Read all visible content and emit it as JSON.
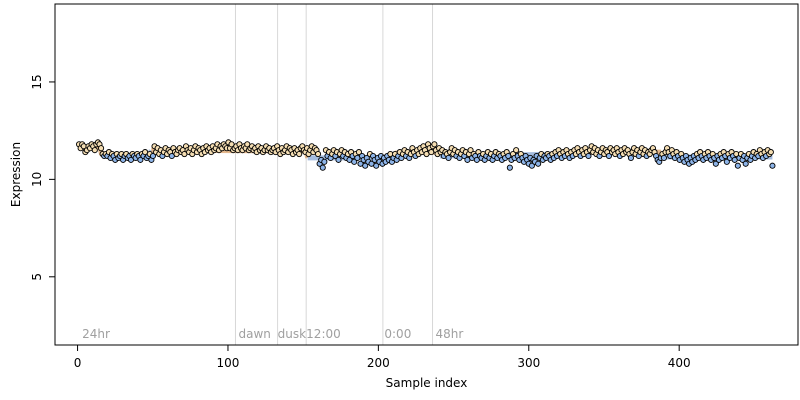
{
  "chart_data": {
    "type": "scatter",
    "title": "",
    "xlabel": "Sample index",
    "ylabel": "Expression",
    "xlim": [
      -15,
      479
    ],
    "ylim": [
      1.5,
      19.0
    ],
    "x_ticks": [
      0,
      100,
      200,
      300,
      400
    ],
    "x_tick_labels": [
      "0",
      "100",
      "200",
      "300",
      "400"
    ],
    "y_ticks": [
      5,
      10,
      15
    ],
    "y_tick_labels": [
      "5",
      "10",
      "15"
    ],
    "grid": false,
    "legend": "none",
    "colors": {
      "point_stroke": "#000000",
      "point_fill_light": "#f5deb3",
      "point_fill_blue": "#8db4e8",
      "trend_above": "#e0b080",
      "trend_below": "#9bb5dc",
      "phase_line": "#d8d8d8",
      "phase_text": "#a0a0a0"
    },
    "phase_lines": [
      105,
      133,
      152,
      203,
      236
    ],
    "phase_labels": [
      {
        "x": 3,
        "text": "24hr"
      },
      {
        "x": 107,
        "text": "dawn"
      },
      {
        "x": 133,
        "text": "dusk"
      },
      {
        "x": 152,
        "text": "12:00"
      },
      {
        "x": 204,
        "text": "0:00"
      },
      {
        "x": 238,
        "text": "48hr"
      }
    ],
    "series": [
      {
        "x_start": 1,
        "x_end": 462,
        "values": [
          11.8,
          11.6,
          11.8,
          11.7,
          11.4,
          11.5,
          11.7,
          11.6,
          11.8,
          11.7,
          11.5,
          11.8,
          11.9,
          11.8,
          11.6,
          11.3,
          11.2,
          11.3,
          11.2,
          11.4,
          11.1,
          11.3,
          11.2,
          11.0,
          11.3,
          11.1,
          11.2,
          11.3,
          11.0,
          11.2,
          11.3,
          11.1,
          11.2,
          11.0,
          11.3,
          11.2,
          11.1,
          11.3,
          11.2,
          11.0,
          11.3,
          11.2,
          11.4,
          11.1,
          11.2,
          11.3,
          11.0,
          11.2,
          11.7,
          11.4,
          11.6,
          11.3,
          11.5,
          11.2,
          11.4,
          11.6,
          11.3,
          11.5,
          11.4,
          11.2,
          11.6,
          11.4,
          11.3,
          11.5,
          11.6,
          11.4,
          11.5,
          11.3,
          11.7,
          11.5,
          11.4,
          11.6,
          11.3,
          11.5,
          11.7,
          11.4,
          11.6,
          11.5,
          11.3,
          11.6,
          11.4,
          11.7,
          11.5,
          11.6,
          11.4,
          11.7,
          11.5,
          11.6,
          11.8,
          11.5,
          11.7,
          11.6,
          11.8,
          11.7,
          11.6,
          11.9,
          11.6,
          11.8,
          11.5,
          11.6,
          11.7,
          11.5,
          11.8,
          11.6,
          11.5,
          11.7,
          11.6,
          11.8,
          11.5,
          11.6,
          11.7,
          11.5,
          11.6,
          11.4,
          11.7,
          11.5,
          11.6,
          11.4,
          11.5,
          11.7,
          11.5,
          11.6,
          11.4,
          11.5,
          11.6,
          11.4,
          11.7,
          11.5,
          11.3,
          11.6,
          11.4,
          11.5,
          11.7,
          11.4,
          11.6,
          11.5,
          11.3,
          11.6,
          11.4,
          11.5,
          11.3,
          11.6,
          11.7,
          11.5,
          11.4,
          11.6,
          11.3,
          11.5,
          11.7,
          11.4,
          11.6,
          11.5,
          11.3,
          10.8,
          11.0,
          10.6,
          10.9,
          11.5,
          11.2,
          11.4,
          11.1,
          11.3,
          11.5,
          11.2,
          11.4,
          11.0,
          11.3,
          11.5,
          11.2,
          11.4,
          11.1,
          11.3,
          11.0,
          11.4,
          11.2,
          10.9,
          11.3,
          11.1,
          11.4,
          10.8,
          11.2,
          11.0,
          10.7,
          11.1,
          10.9,
          11.3,
          10.8,
          11.2,
          11.0,
          10.7,
          11.1,
          10.9,
          11.2,
          10.8,
          11.1,
          10.9,
          11.2,
          11.0,
          11.3,
          10.9,
          11.1,
          11.3,
          11.0,
          11.2,
          11.4,
          11.1,
          11.3,
          11.5,
          11.2,
          11.4,
          11.1,
          11.3,
          11.6,
          11.4,
          11.2,
          11.5,
          11.3,
          11.6,
          11.4,
          11.7,
          11.5,
          11.3,
          11.8,
          11.6,
          11.4,
          11.7,
          11.8,
          11.5,
          11.3,
          11.6,
          11.4,
          11.5,
          11.2,
          11.4,
          11.3,
          11.1,
          11.4,
          11.6,
          11.3,
          11.5,
          11.2,
          11.4,
          11.1,
          11.3,
          11.5,
          11.2,
          11.4,
          11.0,
          11.3,
          11.5,
          11.1,
          11.3,
          11.2,
          11.0,
          11.4,
          11.2,
          11.1,
          11.3,
          11.0,
          11.2,
          11.4,
          11.1,
          11.3,
          11.0,
          11.2,
          11.4,
          11.1,
          11.3,
          11.2,
          11.0,
          11.3,
          11.1,
          11.4,
          11.2,
          10.6,
          11.0,
          11.3,
          11.1,
          11.5,
          11.2,
          11.0,
          11.3,
          11.1,
          10.9,
          11.2,
          11.0,
          10.8,
          11.1,
          10.7,
          11.0,
          10.9,
          11.2,
          10.8,
          11.1,
          11.3,
          11.0,
          11.2,
          11.1,
          11.3,
          11.2,
          11.0,
          11.3,
          11.1,
          11.4,
          11.2,
          11.5,
          11.3,
          11.1,
          11.4,
          11.2,
          11.5,
          11.3,
          11.1,
          11.4,
          11.2,
          11.5,
          11.3,
          11.6,
          11.4,
          11.2,
          11.5,
          11.3,
          11.6,
          11.4,
          11.2,
          11.5,
          11.7,
          11.4,
          11.6,
          11.3,
          11.5,
          11.2,
          11.4,
          11.6,
          11.3,
          11.5,
          11.4,
          11.2,
          11.6,
          11.4,
          11.5,
          11.3,
          11.6,
          11.4,
          11.2,
          11.5,
          11.3,
          11.6,
          11.4,
          11.5,
          11.3,
          11.1,
          11.4,
          11.6,
          11.3,
          11.5,
          11.2,
          11.4,
          11.6,
          11.3,
          11.5,
          11.2,
          11.4,
          11.3,
          11.5,
          11.6,
          11.4,
          11.2,
          11.0,
          10.9,
          11.1,
          11.3,
          11.1,
          11.4,
          11.6,
          11.4,
          11.2,
          11.5,
          11.3,
          11.1,
          11.4,
          11.2,
          11.0,
          11.3,
          11.1,
          10.9,
          11.2,
          11.0,
          10.8,
          11.1,
          10.9,
          11.2,
          11.0,
          11.3,
          11.1,
          11.4,
          11.2,
          11.0,
          11.3,
          11.1,
          11.4,
          11.2,
          11.0,
          11.3,
          11.1,
          10.8,
          11.2,
          11.0,
          11.3,
          11.1,
          11.4,
          11.2,
          10.9,
          11.3,
          11.1,
          11.4,
          11.2,
          11.0,
          11.3,
          10.7,
          11.1,
          11.3,
          11.0,
          11.2,
          10.8,
          11.1,
          11.3,
          11.0,
          11.2,
          11.4,
          11.1,
          11.3,
          11.2,
          11.5,
          11.3,
          11.1,
          11.4,
          11.2,
          11.5,
          11.3,
          11.4,
          10.7
        ],
        "trend": [
          {
            "x": 1,
            "y": 11.65
          },
          {
            "x": 15,
            "y": 11.65
          },
          {
            "x": 16,
            "y": 11.25
          },
          {
            "x": 48,
            "y": 11.25
          },
          {
            "x": 49,
            "y": 11.5
          },
          {
            "x": 152,
            "y": 11.45
          },
          {
            "x": 153,
            "y": 11.1
          },
          {
            "x": 210,
            "y": 11.1
          },
          {
            "x": 211,
            "y": 11.35
          },
          {
            "x": 240,
            "y": 11.4
          },
          {
            "x": 241,
            "y": 11.2
          },
          {
            "x": 330,
            "y": 11.3
          },
          {
            "x": 331,
            "y": 11.4
          },
          {
            "x": 388,
            "y": 11.4
          },
          {
            "x": 389,
            "y": 11.15
          },
          {
            "x": 462,
            "y": 11.15
          }
        ]
      }
    ]
  }
}
